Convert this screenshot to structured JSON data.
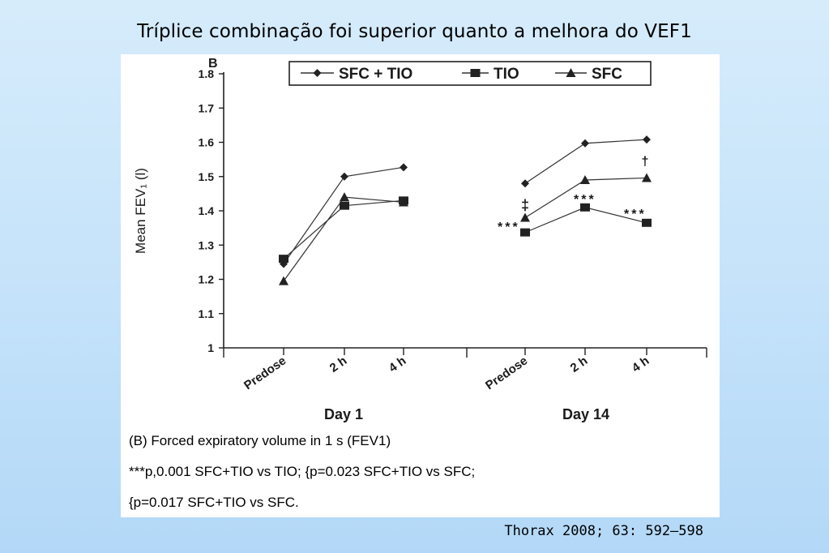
{
  "slide": {
    "title": "Tríplice combinação foi superior quanto a melhora do VEF1",
    "citation": "Thorax  2008; 63: 592–598"
  },
  "captions": [
    "(B) Forced expiratory volume in 1 s (FEV1)",
    "***p,0.001 SFC+TIO vs TIO; {p=0.023 SFC+TIO vs SFC;",
    "{p=0.017 SFC+TIO vs SFC."
  ],
  "chart_data": {
    "type": "line",
    "panel_label": "B",
    "ylabel": "Mean FEV₁ (l)",
    "ylim": [
      1.0,
      1.8
    ],
    "yticks": [
      "1",
      "1.1",
      "1.2",
      "1.3",
      "1.4",
      "1.5",
      "1.6",
      "1.7",
      "1.8"
    ],
    "groups": [
      {
        "name": "Day 1",
        "categories": [
          "Predose",
          "2 h",
          "4 h"
        ]
      },
      {
        "name": "Day 14",
        "categories": [
          "Predose",
          "2 h",
          "4 h"
        ]
      }
    ],
    "legend_position": "top",
    "series": [
      {
        "name": "SFC + TIO",
        "marker": "diamond",
        "day1": [
          1.245,
          1.5,
          1.527
        ],
        "day14": [
          1.48,
          1.597,
          1.608
        ]
      },
      {
        "name": "TIO",
        "marker": "square",
        "day1": [
          1.26,
          1.415,
          1.43
        ],
        "day14": [
          1.337,
          1.41,
          1.365
        ]
      },
      {
        "name": "SFC",
        "marker": "triangle",
        "day1": [
          1.195,
          1.44,
          1.425
        ],
        "day14": [
          1.38,
          1.49,
          1.496
        ]
      }
    ],
    "annotations": [
      {
        "text": "***",
        "group": 1,
        "index": 0
      },
      {
        "text": "‡",
        "group": 1,
        "index": 0
      },
      {
        "text": "***",
        "group": 1,
        "index": 1
      },
      {
        "text": "***",
        "group": 1,
        "index": 2
      },
      {
        "text": "†",
        "group": 1,
        "index": 2
      }
    ]
  }
}
